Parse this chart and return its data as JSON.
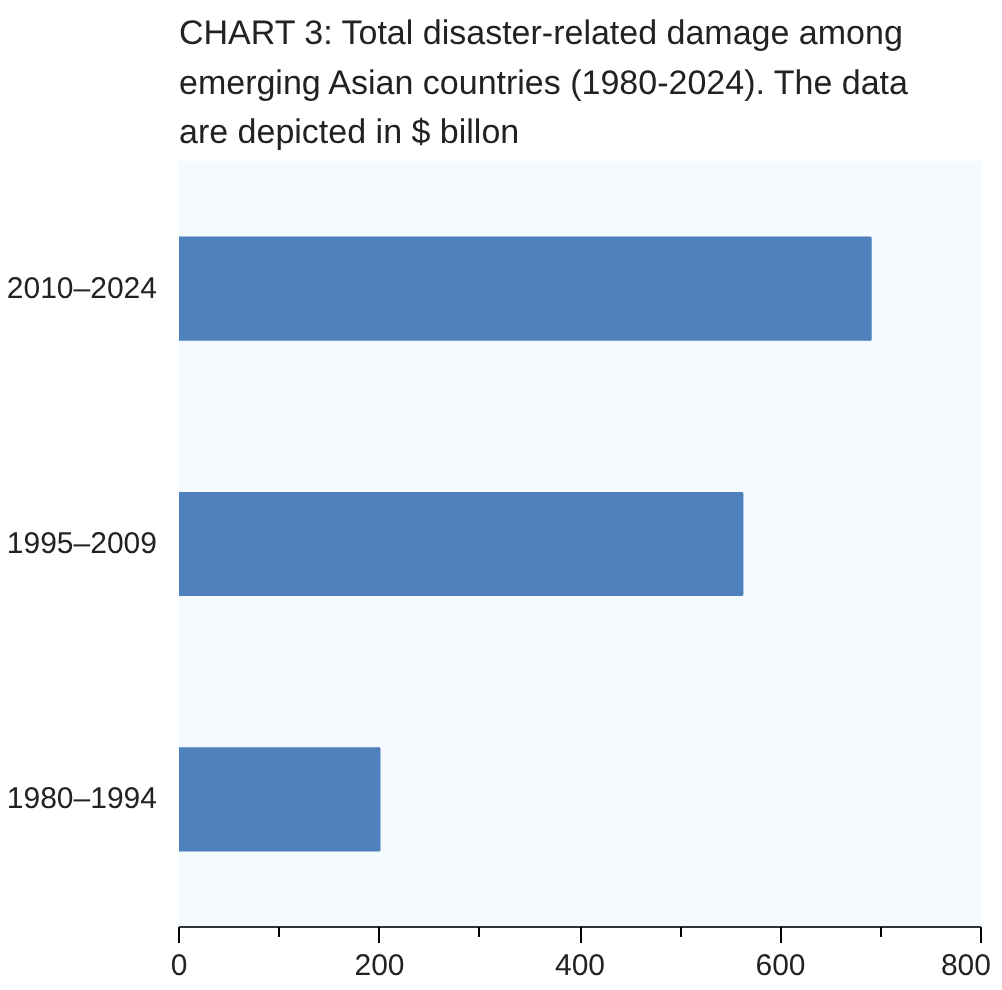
{
  "chart_data": {
    "type": "bar",
    "orientation": "horizontal",
    "title": "CHART 3: Total disaster-related damage among emerging Asian countries (1980-2024). The data are depicted in $ billon",
    "categories": [
      "2010–2024",
      "1995–2009",
      "1980–1994"
    ],
    "values": [
      690,
      562,
      200
    ],
    "color": "#4f81bd",
    "xlim": [
      0,
      800
    ],
    "xticks": [
      0,
      200,
      400,
      600,
      800
    ],
    "grid": false
  }
}
